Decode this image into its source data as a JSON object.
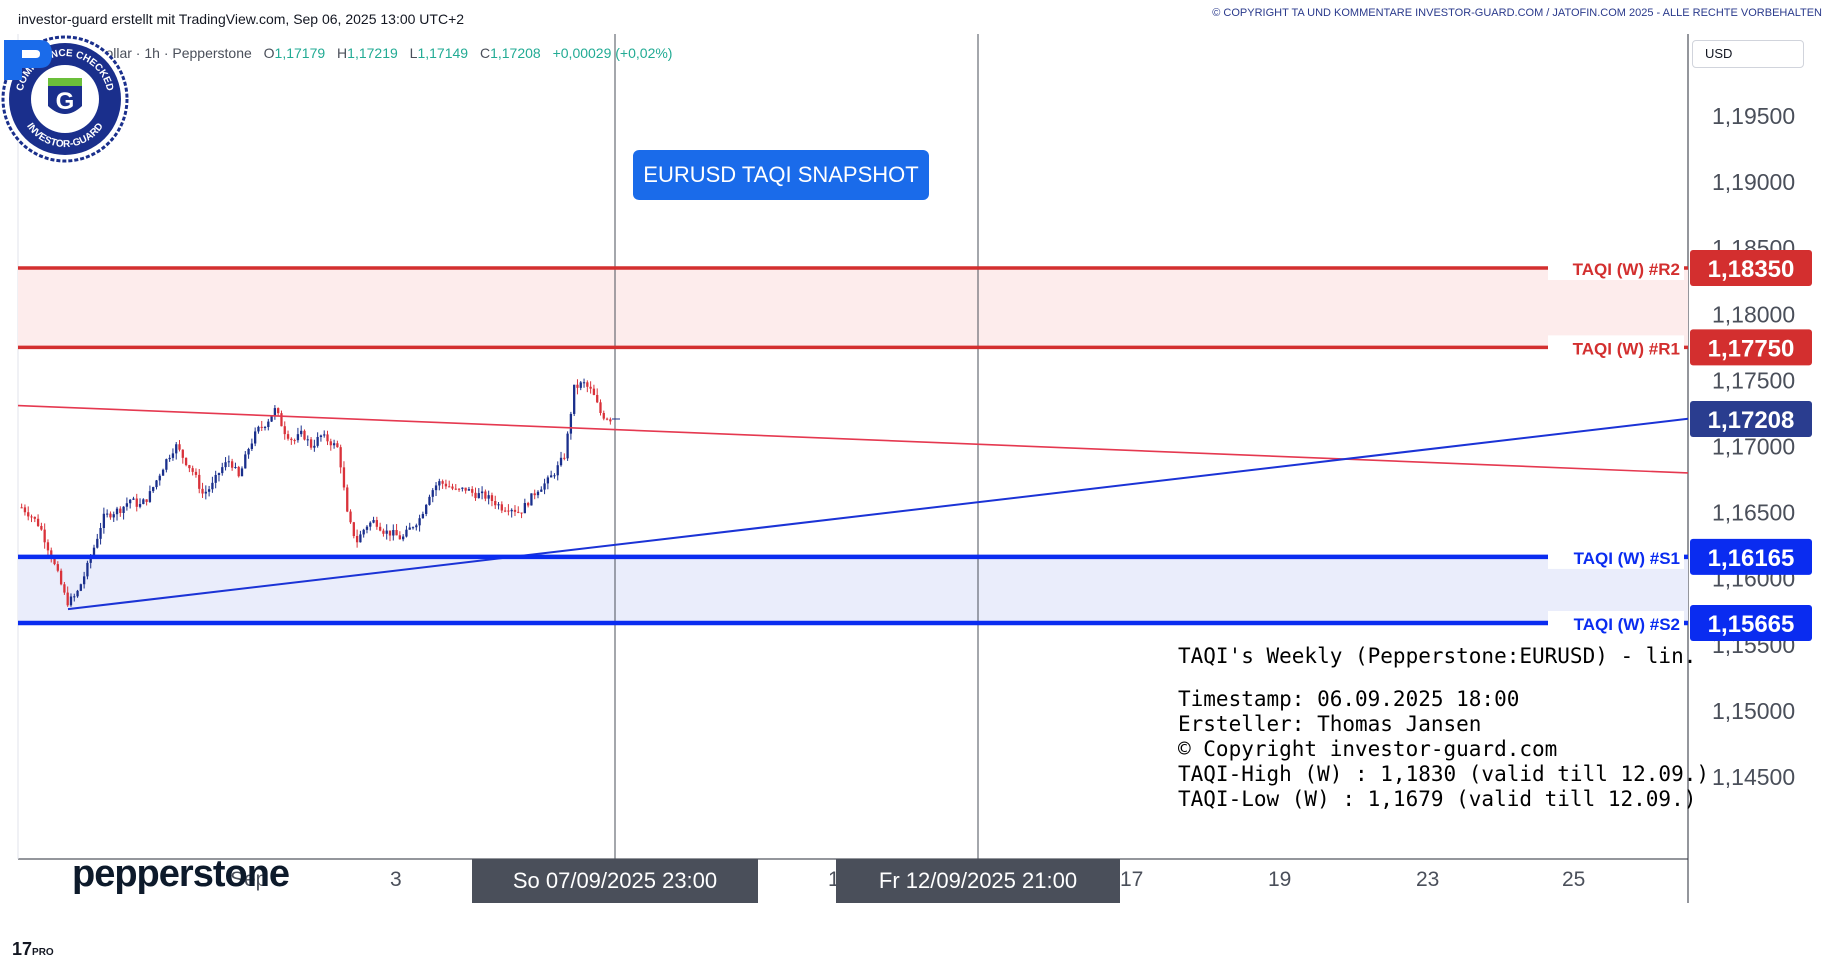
{
  "header": {
    "left_text": "investor-guard erstellt mit TradingView.com, Sep 06, 2025 13:00 UTC+2",
    "right_text": "© COPYRIGHT TA UND KOMMENTARE INVESTOR-GUARD.COM / JATOFIN.COM 2025 - ALLE RECHTE VORBEHALTEN"
  },
  "legend": {
    "symbol": "Euro / US-Dollar · 1h · Pepperstone",
    "open_label": "O",
    "open": "1,17179",
    "high_label": "H",
    "high": "1,17219",
    "low_label": "L",
    "low": "1,17149",
    "close_label": "C",
    "close": "1,17208",
    "change": "+0,00029 (+0,02%)"
  },
  "logo": {
    "top_text": "COMPLIANCE CHECKED",
    "bottom_text": "INVESTOR-GUARD",
    "letter": "G"
  },
  "snapshot_label": "EURUSD TAQI SNAPSHOT",
  "currency_label": "USD",
  "info_box": {
    "line1": "TAQI's Weekly (Pepperstone:EURUSD) - lin.",
    "line2": "Timestamp: 06.09.2025 18:00",
    "line3": "Ersteller: Thomas Jansen",
    "line4": "© Copyright investor-guard.com",
    "line5": "TAQI-High (W) : 1,1830 (valid till 12.09.)",
    "line6": "TAQI-Low (W) : 1,1679 (valid till 12.09.)"
  },
  "x_axis": {
    "labels": [
      "Sep",
      "3",
      "1",
      "17",
      "19",
      "23",
      "25"
    ],
    "crosshair_badge_1": "So 07/09/2025   23:00",
    "crosshair_badge_2": "Fr 12/09/2025   21:00"
  },
  "brand": {
    "pepperstone": "pepperstone",
    "tv": "17",
    "tv_pro": "PRO"
  },
  "colors": {
    "resistance": "#d32f2f",
    "support": "#0a2cf0",
    "trend_red": "#e53950",
    "trend_blue": "#1b33d6",
    "candle_up": "#1a2f8c",
    "candle_down": "#d9323a",
    "last_price": "#2a3d8f"
  },
  "chart_data": {
    "type": "candlestick",
    "symbol": "EURUSD",
    "timeframe": "1h",
    "y_axis_ticks": [
      1.195,
      1.19,
      1.185,
      1.18,
      1.175,
      1.17,
      1.165,
      1.16,
      1.155,
      1.15,
      1.145
    ],
    "y_axis_tick_labels": [
      "1,19500",
      "1,19000",
      "1,18500",
      "1,18000",
      "1,17500",
      "1,17000",
      "1,16500",
      "1,16000",
      "1,15500",
      "1,15000",
      "1,14500"
    ],
    "ylim": [
      1.1388,
      1.2012
    ],
    "levels": [
      {
        "name": "TAQI (W) #R2",
        "value": 1.1835,
        "label": "1,18350",
        "type": "resistance"
      },
      {
        "name": "TAQI (W) #R1",
        "value": 1.1775,
        "label": "1,17750",
        "type": "resistance"
      },
      {
        "name": "TAQI (W) #S1",
        "value": 1.16165,
        "label": "1,16165",
        "type": "support"
      },
      {
        "name": "TAQI (W) #S2",
        "value": 1.15665,
        "label": "1,15665",
        "type": "support"
      }
    ],
    "last_price": {
      "value": 1.17208,
      "label": "1,17208"
    },
    "price_path": [
      1.1654,
      1.1648,
      1.164,
      1.1622,
      1.1603,
      1.1582,
      1.1587,
      1.1604,
      1.1624,
      1.1646,
      1.165,
      1.1653,
      1.166,
      1.1655,
      1.1662,
      1.1676,
      1.169,
      1.1701,
      1.169,
      1.168,
      1.1664,
      1.167,
      1.1683,
      1.169,
      1.1676,
      1.1698,
      1.1712,
      1.1718,
      1.1728,
      1.1712,
      1.1704,
      1.171,
      1.17,
      1.1708,
      1.1704,
      1.1698,
      1.1646,
      1.1628,
      1.164,
      1.1644,
      1.1636,
      1.1634,
      1.163,
      1.1639,
      1.1646,
      1.1664,
      1.1673,
      1.1671,
      1.1666,
      1.1668,
      1.1664,
      1.1663,
      1.1659,
      1.1654,
      1.1654,
      1.165,
      1.1659,
      1.1668,
      1.1673,
      1.1682,
      1.1694,
      1.1744,
      1.1748,
      1.1741,
      1.1724,
      1.1721
    ],
    "trendlines": [
      {
        "name": "red-trendline",
        "from": 1.1731,
        "to": 1.168
      },
      {
        "name": "blue-trendline",
        "from": 1.1577,
        "to": 1.1721
      }
    ]
  }
}
